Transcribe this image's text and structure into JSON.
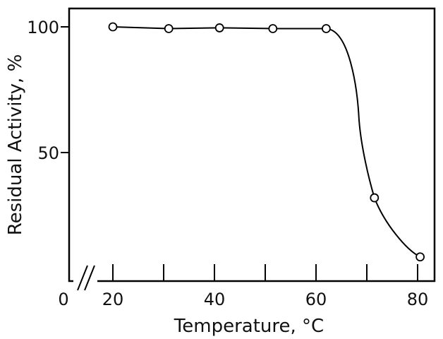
{
  "chart_data": {
    "type": "line",
    "title": "",
    "xlabel": "Temperature, °C",
    "ylabel": "Residual Activity, %",
    "x_ticks": [
      20,
      30,
      40,
      50,
      60,
      70,
      80
    ],
    "x_tick_labels": [
      "0",
      "20",
      "40",
      "60",
      "80"
    ],
    "y_tick_labels": [
      "50",
      "100"
    ],
    "xlim": [
      12,
      85
    ],
    "ylim": [
      0,
      102
    ],
    "axis_break": true,
    "grid": false,
    "legend": "none",
    "series": [
      {
        "x": [
          20,
          31,
          41,
          51.5,
          62,
          71.5,
          80.5
        ],
        "y": [
          100,
          99.3,
          99.6,
          99.3,
          99.3,
          32,
          8.5
        ],
        "marker": "open-circle",
        "color": "#000000"
      }
    ]
  }
}
